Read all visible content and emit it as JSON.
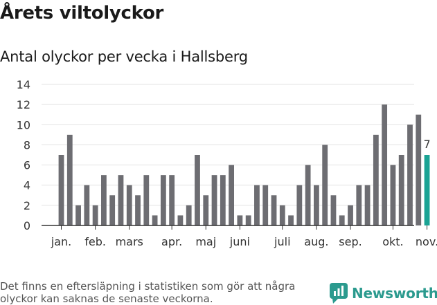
{
  "title": "Årets viltolyckor",
  "subtitle": "Antal olyckor per vecka i Hallsberg",
  "footnote": "Det finns en eftersläpning i statistiken som gör att några olyckor kan saknas de senaste veckorna.",
  "brand": {
    "name": "Newsworthy",
    "icon": "newsworthy-logo-icon"
  },
  "colors": {
    "bar": "#6d6d72",
    "highlight": "#1aa394",
    "grid": "#e3e3e3",
    "axis": "#333333",
    "brand": "#2b9a8e"
  },
  "chart_data": {
    "type": "bar",
    "title": "Antal olyckor per vecka i Hallsberg",
    "xlabel": "",
    "ylabel": "",
    "ylim": [
      0,
      14
    ],
    "yticks": [
      0,
      2,
      4,
      6,
      8,
      10,
      12,
      14
    ],
    "values": [
      7,
      9,
      2,
      4,
      2,
      5,
      3,
      5,
      4,
      3,
      5,
      1,
      5,
      5,
      1,
      2,
      7,
      3,
      5,
      5,
      6,
      1,
      1,
      4,
      4,
      3,
      2,
      1,
      4,
      6,
      4,
      8,
      3,
      1,
      2,
      4,
      4,
      9,
      12,
      6,
      7,
      10,
      11,
      7
    ],
    "highlight_index": 43,
    "highlight_label": "7",
    "month_labels": [
      {
        "label": "jan.",
        "week": 1
      },
      {
        "label": "feb.",
        "week": 5
      },
      {
        "label": "mars",
        "week": 9
      },
      {
        "label": "apr.",
        "week": 14
      },
      {
        "label": "maj",
        "week": 18
      },
      {
        "label": "juni",
        "week": 22
      },
      {
        "label": "juli",
        "week": 27
      },
      {
        "label": "aug.",
        "week": 31
      },
      {
        "label": "sep.",
        "week": 35
      },
      {
        "label": "okt.",
        "week": 40
      },
      {
        "label": "nov.",
        "week": 44
      }
    ]
  }
}
